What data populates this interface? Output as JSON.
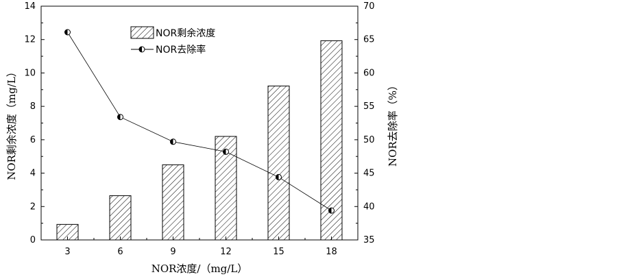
{
  "chart_data": {
    "type": "bar",
    "categories": [
      "3",
      "6",
      "9",
      "12",
      "15",
      "18"
    ],
    "series": [
      {
        "name": "NOR剩余浓度",
        "type": "bar",
        "axis": "left",
        "values": [
          0.93,
          2.65,
          4.5,
          6.2,
          9.22,
          11.93
        ],
        "pattern": "diagonal-hatch"
      },
      {
        "name": "NOR去除率",
        "type": "line",
        "axis": "right",
        "values": [
          66.1,
          53.4,
          49.7,
          48.2,
          44.4,
          39.4
        ],
        "marker": "half-filled-circle"
      }
    ],
    "xlabel": "NOR浓度/（mg/L）",
    "ylabel": "NOR剩余浓度（mg/L）",
    "y2label": "NOR去除率（%）",
    "ylim": [
      0,
      14
    ],
    "y2lim": [
      35,
      70
    ],
    "yticks": [
      "0",
      "2",
      "4",
      "6",
      "8",
      "10",
      "12",
      "14"
    ],
    "y2ticks": [
      "35",
      "40",
      "45",
      "50",
      "55",
      "60",
      "65",
      "70"
    ],
    "legend_position": "top-center",
    "grid": false,
    "colors": {
      "axis": "#000000",
      "bar_fill": "#ffffff",
      "hatch": "#000000",
      "line": "#000000"
    }
  }
}
